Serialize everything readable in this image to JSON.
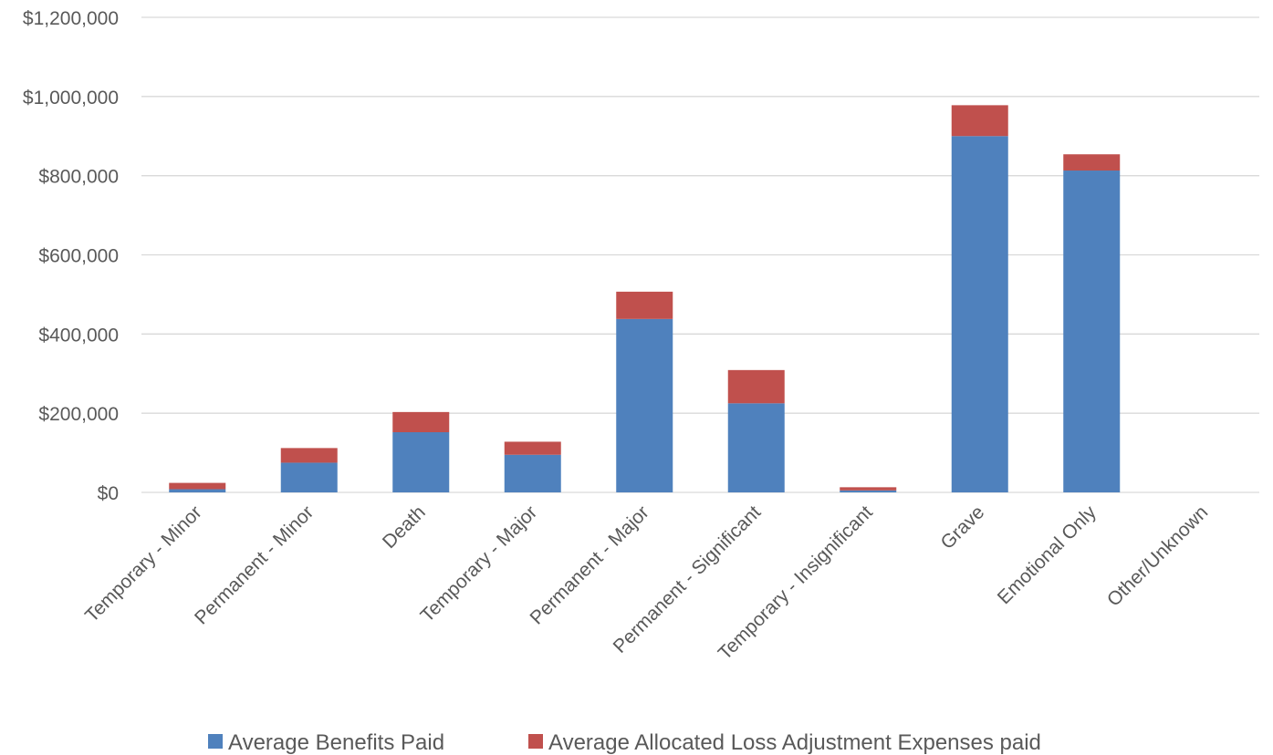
{
  "chart_data": {
    "type": "bar",
    "stacked": true,
    "categories": [
      "Temporary - Minor",
      "Permanent - Minor",
      "Death",
      "Temporary - Major",
      "Permanent - Major",
      "Permanent - Significant",
      "Temporary - Insignificant",
      "Grave",
      "Emotional Only",
      "Other/Unknown"
    ],
    "series": [
      {
        "name": "Average Benefits Paid",
        "color": "#4F81BD",
        "values": [
          8000,
          75000,
          152000,
          95000,
          438000,
          225000,
          5000,
          900000,
          813000,
          0
        ]
      },
      {
        "name": "Average Allocated Loss Adjustment Expenses paid",
        "color": "#C0504D",
        "values": [
          16000,
          37000,
          51000,
          33000,
          69000,
          84000,
          8000,
          78000,
          41000,
          0
        ]
      }
    ],
    "y_ticks": [
      "$0",
      "$200,000",
      "$400,000",
      "$600,000",
      "$800,000",
      "$1,000,000",
      "$1,200,000"
    ],
    "ylim": [
      0,
      1200000
    ],
    "grid": true,
    "legend_position": "bottom",
    "gridline_color": "#D9D9D9",
    "text_color": "#595959"
  }
}
